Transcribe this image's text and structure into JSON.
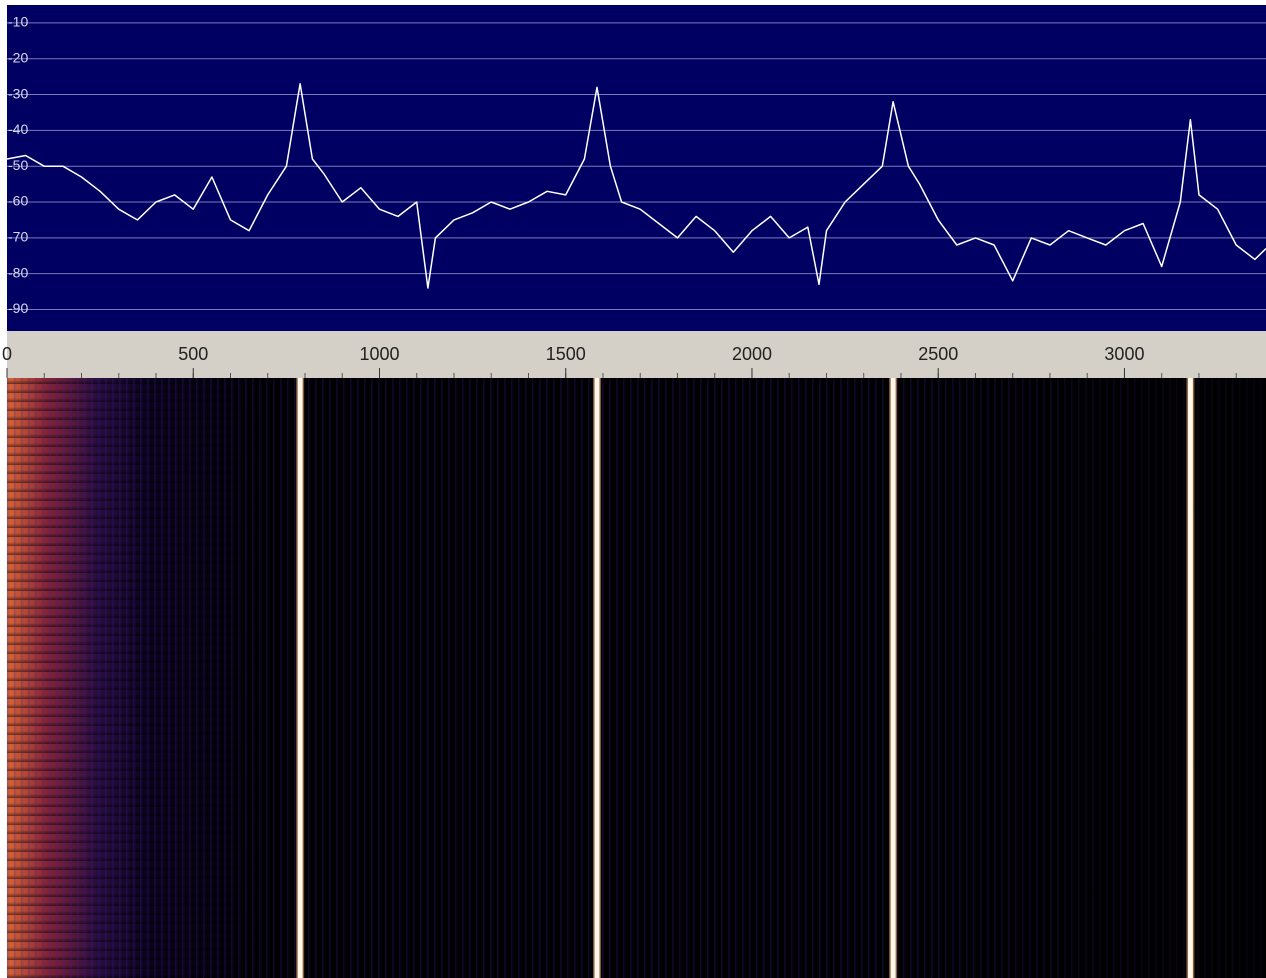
{
  "chart_data": {
    "type": "line",
    "x": [
      0,
      50,
      100,
      150,
      200,
      250,
      300,
      350,
      400,
      450,
      500,
      550,
      600,
      650,
      700,
      750,
      787,
      820,
      850,
      900,
      950,
      1000,
      1050,
      1100,
      1130,
      1150,
      1200,
      1250,
      1300,
      1350,
      1400,
      1450,
      1500,
      1550,
      1584,
      1620,
      1650,
      1700,
      1750,
      1800,
      1850,
      1900,
      1950,
      2000,
      2050,
      2100,
      2150,
      2180,
      2200,
      2250,
      2300,
      2350,
      2379,
      2420,
      2450,
      2500,
      2550,
      2600,
      2650,
      2700,
      2750,
      2800,
      2850,
      2900,
      2950,
      3000,
      3050,
      3100,
      3150,
      3177,
      3200,
      3250,
      3300,
      3350,
      3380
    ],
    "values": [
      -48,
      -47,
      -50,
      -50,
      -53,
      -57,
      -62,
      -65,
      -60,
      -58,
      -62,
      -53,
      -65,
      -68,
      -58,
      -50,
      -27,
      -48,
      -52,
      -60,
      -56,
      -62,
      -64,
      -60,
      -84,
      -70,
      -65,
      -63,
      -60,
      -62,
      -60,
      -57,
      -58,
      -48,
      -28,
      -50,
      -60,
      -62,
      -66,
      -70,
      -64,
      -68,
      -74,
      -68,
      -64,
      -70,
      -67,
      -83,
      -68,
      -60,
      -55,
      -50,
      -32,
      -50,
      -55,
      -65,
      -72,
      -70,
      -72,
      -82,
      -70,
      -72,
      -68,
      -70,
      -72,
      -68,
      -66,
      -78,
      -60,
      -37,
      -58,
      -62,
      -72,
      -76,
      -73
    ],
    "color": "#ffffff",
    "xlim": [
      0,
      3380
    ],
    "xticks": [
      0,
      500,
      1000,
      1500,
      2000,
      2500,
      3000
    ],
    "ylim": [
      -5,
      -96
    ],
    "yticks": [
      -10,
      -20,
      -30,
      -40,
      -50,
      -60,
      -70,
      -80,
      -90
    ],
    "grid": true
  }
}
